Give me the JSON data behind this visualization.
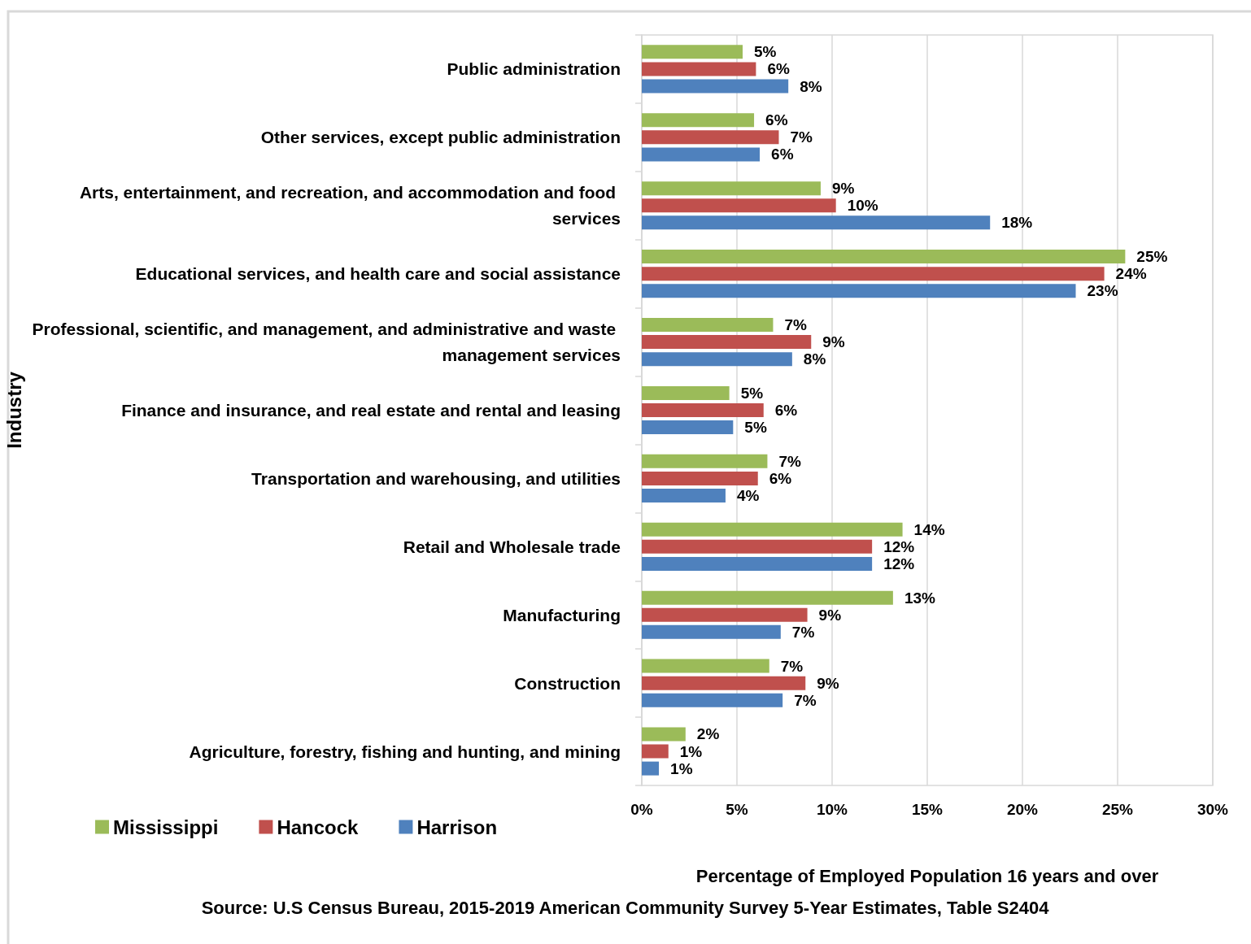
{
  "chart_data": {
    "type": "bar",
    "orientation": "horizontal",
    "xlabel": "Percentage of Employed Population 16 years and over",
    "ylabel": "Industry",
    "annotations": [
      "Source: U.S Census Bureau, 2015-2019 American Community Survey 5-Year Estimates, Table S2404"
    ],
    "categories": [
      "Public administration",
      "Other services, except public administration",
      "Arts, entertainment, and recreation, and accommodation and food services",
      "Educational services, and health care and social assistance",
      "Professional, scientific, and management, and administrative and waste management services",
      "Finance and insurance, and real estate and rental and leasing",
      "Transportation and warehousing, and utilities",
      "Retail and Wholesale trade",
      "Manufacturing",
      "Construction",
      "Agriculture, forestry, fishing and hunting, and mining"
    ],
    "series": [
      {
        "name": "Mississippi",
        "color": "#9bbb59",
        "values": [
          5.3,
          5.9,
          9.4,
          25.4,
          6.9,
          4.6,
          6.6,
          13.7,
          13.2,
          6.7,
          2.3
        ],
        "value_labels": [
          "5%",
          "6%",
          "9%",
          "25%",
          "7%",
          "5%",
          "7%",
          "14%",
          "13%",
          "7%",
          "2%"
        ]
      },
      {
        "name": "Hancock",
        "color": "#c0504d",
        "values": [
          6.0,
          7.2,
          10.2,
          24.3,
          8.9,
          6.4,
          6.1,
          12.1,
          8.7,
          8.6,
          1.4
        ],
        "value_labels": [
          "6%",
          "7%",
          "10%",
          "24%",
          "9%",
          "6%",
          "6%",
          "12%",
          "9%",
          "9%",
          "1%"
        ]
      },
      {
        "name": "Harrison",
        "color": "#4f81bd",
        "values": [
          7.7,
          6.2,
          18.3,
          22.8,
          7.9,
          4.8,
          4.4,
          12.1,
          7.3,
          7.4,
          0.9
        ],
        "value_labels": [
          "8%",
          "6%",
          "18%",
          "23%",
          "8%",
          "5%",
          "4%",
          "12%",
          "7%",
          "7%",
          "1%"
        ]
      }
    ],
    "xlim": [
      0,
      30
    ],
    "xticks": [
      {
        "value": 0,
        "label": "0%"
      },
      {
        "value": 5,
        "label": "5%"
      },
      {
        "value": 10,
        "label": "10%"
      },
      {
        "value": 15,
        "label": "15%"
      },
      {
        "value": 20,
        "label": "20%"
      },
      {
        "value": 25,
        "label": "25%"
      },
      {
        "value": 30,
        "label": "30%"
      }
    ],
    "grid": "x",
    "legend": "bottom left"
  }
}
